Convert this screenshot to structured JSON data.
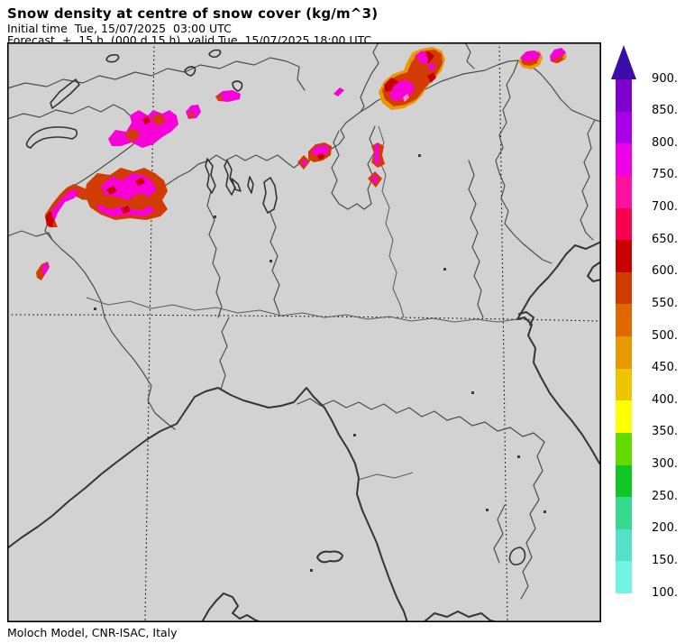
{
  "header": {
    "title": "Snow density at centre of snow cover (kg/m^3)",
    "initial_time_line": "Initial time  Tue, 15/07/2025  03:00 UTC",
    "forecast_line": "Forecast  +  15 h  (000 d 15 h)  valid Tue, 15/07/2025 18:00 UTC"
  },
  "footer": {
    "credit": "Moloch Model, CNR-ISAC, Italy"
  },
  "map": {
    "description": "Moloch model domain over northern Italy and the Alps; shaded cells show snow density at centre of snow cover",
    "gridlines": "dotted lat/lon lines, two meridians and one parallel"
  },
  "colorbar": {
    "orientation": "vertical",
    "unit": "kg/m^3",
    "tick_labels": [
      "900.",
      "850.",
      "800.",
      "750.",
      "700.",
      "650.",
      "600.",
      "550.",
      "500.",
      "450.",
      "400.",
      "350.",
      "300.",
      "250.",
      "200.",
      "150.",
      "100."
    ],
    "tick_values": [
      900,
      850,
      800,
      750,
      700,
      650,
      600,
      550,
      500,
      450,
      400,
      350,
      300,
      250,
      200,
      150,
      100
    ],
    "arrow_color": "#3A0CA8",
    "segment_colors_top_to_bottom": [
      "#7F00CC",
      "#A800E8",
      "#EE00E6",
      "#FF10A0",
      "#F80050",
      "#C80000",
      "#D03C00",
      "#E06800",
      "#E89800",
      "#F0C400",
      "#FFFF00",
      "#63DB00",
      "#0FC825",
      "#36D98E",
      "#55E0C8",
      "#73F2E6"
    ]
  },
  "palette": {
    "background": "#D2D2D2",
    "amber": "#EC9800",
    "orange": "#E06800",
    "red_orange": "#D23C00",
    "dark_red": "#C40000",
    "magenta": "#F800D8",
    "deep_pink": "#FF30B0",
    "light_pink": "#FF8CD2"
  }
}
